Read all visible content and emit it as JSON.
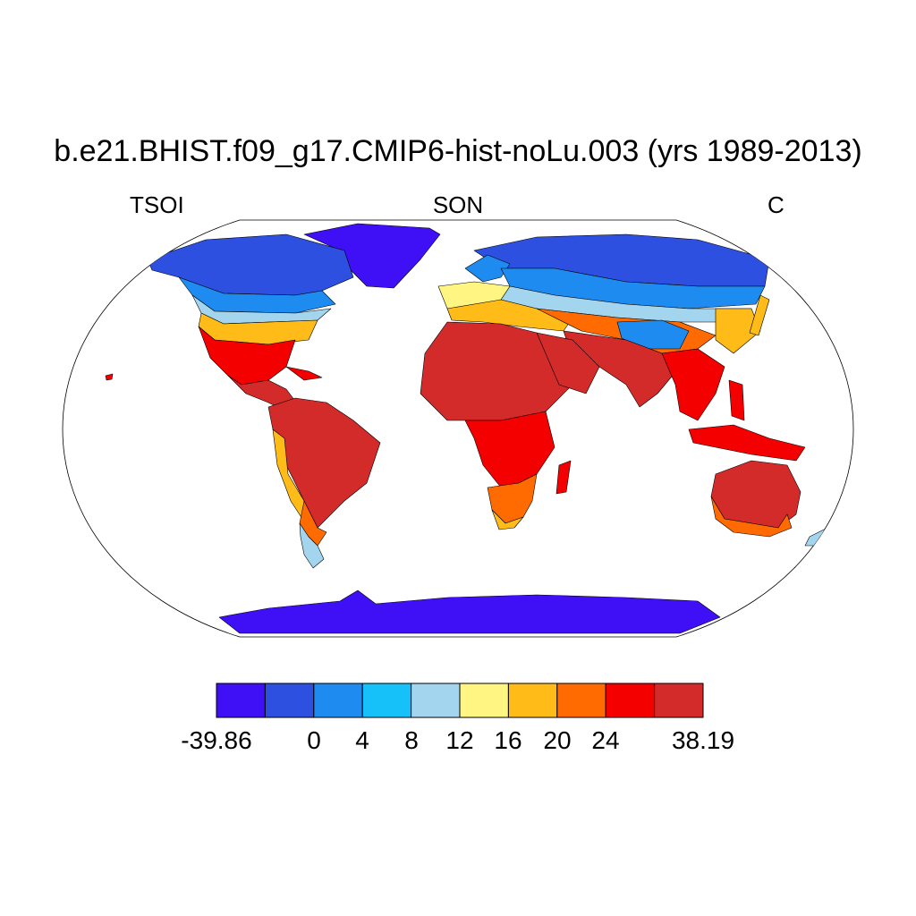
{
  "title": "b.e21.BHIST.f09_g17.CMIP6-hist-noLu.003 (yrs 1989-2013)",
  "subtitle_left": "TSOI",
  "subtitle_center": "SON",
  "subtitle_right": "C",
  "colorbar": {
    "colors": [
      "#3f10f6",
      "#2d50e1",
      "#1e8bf0",
      "#16c0f8",
      "#a3d5ee",
      "#fff582",
      "#ffbb18",
      "#ff6b00",
      "#f50000",
      "#d32a2a"
    ],
    "tick_labels": [
      "-39.86",
      "0",
      "4",
      "8",
      "12",
      "16",
      "20",
      "24",
      "38.19"
    ]
  }
}
